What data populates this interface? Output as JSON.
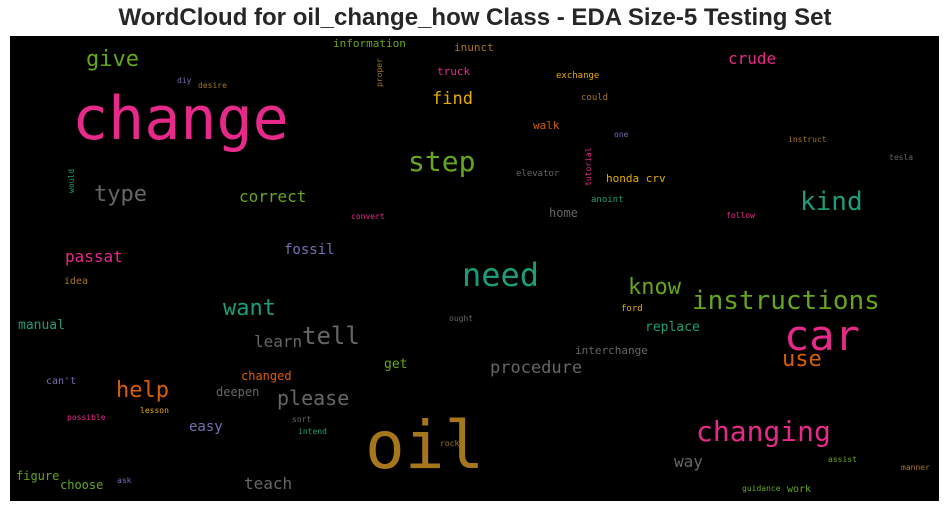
{
  "title": "WordCloud for oil_change_how Class - EDA Size-5 Testing Set",
  "chart_data": {
    "type": "wordcloud",
    "background": "#000000",
    "colormap": "Dark2",
    "words": [
      {
        "text": "oil",
        "color": "#a6761d"
      },
      {
        "text": "change",
        "color": "#e7298a"
      },
      {
        "text": "car",
        "color": "#e7298a"
      },
      {
        "text": "instructions",
        "color": "#66a61e"
      },
      {
        "text": "changing",
        "color": "#e7298a"
      },
      {
        "text": "need",
        "color": "#1b9e77"
      },
      {
        "text": "step",
        "color": "#66a61e"
      },
      {
        "text": "kind",
        "color": "#1b9e77"
      },
      {
        "text": "know",
        "color": "#66a61e"
      },
      {
        "text": "want",
        "color": "#1b9e77"
      },
      {
        "text": "help",
        "color": "#d95f02"
      },
      {
        "text": "tell",
        "color": "#666666"
      },
      {
        "text": "please",
        "color": "#666666"
      },
      {
        "text": "give",
        "color": "#66a61e"
      },
      {
        "text": "type",
        "color": "#666666"
      },
      {
        "text": "use",
        "color": "#d95f02"
      },
      {
        "text": "procedure",
        "color": "#666666"
      },
      {
        "text": "way",
        "color": "#666666"
      },
      {
        "text": "teach",
        "color": "#666666"
      },
      {
        "text": "crude",
        "color": "#e7298a"
      },
      {
        "text": "find",
        "color": "#e6ab02"
      },
      {
        "text": "correct",
        "color": "#66a61e"
      },
      {
        "text": "learn",
        "color": "#666666"
      },
      {
        "text": "passat",
        "color": "#e7298a"
      },
      {
        "text": "replace",
        "color": "#1b9e77"
      },
      {
        "text": "fossil",
        "color": "#7570b3"
      },
      {
        "text": "easy",
        "color": "#7570b3"
      },
      {
        "text": "manual",
        "color": "#1b9e77"
      },
      {
        "text": "get",
        "color": "#66a61e"
      },
      {
        "text": "home",
        "color": "#666666"
      },
      {
        "text": "changed",
        "color": "#d95f02"
      },
      {
        "text": "deepen",
        "color": "#666666"
      },
      {
        "text": "figure",
        "color": "#66a61e"
      },
      {
        "text": "choose",
        "color": "#66a61e"
      },
      {
        "text": "interchange",
        "color": "#666666"
      },
      {
        "text": "honda crv",
        "color": "#e6ab02"
      },
      {
        "text": "information",
        "color": "#66a61e"
      },
      {
        "text": "inunct",
        "color": "#a6761d"
      },
      {
        "text": "truck",
        "color": "#e7298a"
      },
      {
        "text": "walk",
        "color": "#d95f02"
      },
      {
        "text": "exchange",
        "color": "#e6ab02"
      },
      {
        "text": "could",
        "color": "#a6761d"
      },
      {
        "text": "idea",
        "color": "#a6761d"
      },
      {
        "text": "can't",
        "color": "#7570b3"
      },
      {
        "text": "work",
        "color": "#66a61e"
      },
      {
        "text": "ford",
        "color": "#e6ab02"
      },
      {
        "text": "anoint",
        "color": "#1b9e77"
      },
      {
        "text": "elevator",
        "color": "#666666"
      },
      {
        "text": "one",
        "color": "#7570b3"
      },
      {
        "text": "instruct",
        "color": "#a6761d"
      },
      {
        "text": "tesla",
        "color": "#666666"
      },
      {
        "text": "follow",
        "color": "#e7298a"
      },
      {
        "text": "convert",
        "color": "#e7298a"
      },
      {
        "text": "desire",
        "color": "#a6761d"
      },
      {
        "text": "diy",
        "color": "#7570b3"
      },
      {
        "text": "proper",
        "color": "#a6761d"
      },
      {
        "text": "would",
        "color": "#1b9e77"
      },
      {
        "text": "tutorial",
        "color": "#e7298a"
      },
      {
        "text": "ought",
        "color": "#666666"
      },
      {
        "text": "lesson",
        "color": "#e6ab02"
      },
      {
        "text": "possible",
        "color": "#e7298a"
      },
      {
        "text": "sort",
        "color": "#666666"
      },
      {
        "text": "intend",
        "color": "#1b9e77"
      },
      {
        "text": "rock",
        "color": "#a6761d"
      },
      {
        "text": "ask",
        "color": "#7570b3"
      },
      {
        "text": "assist",
        "color": "#66a61e"
      },
      {
        "text": "guidance",
        "color": "#66a61e"
      },
      {
        "text": "manner",
        "color": "#a6761d"
      }
    ]
  }
}
